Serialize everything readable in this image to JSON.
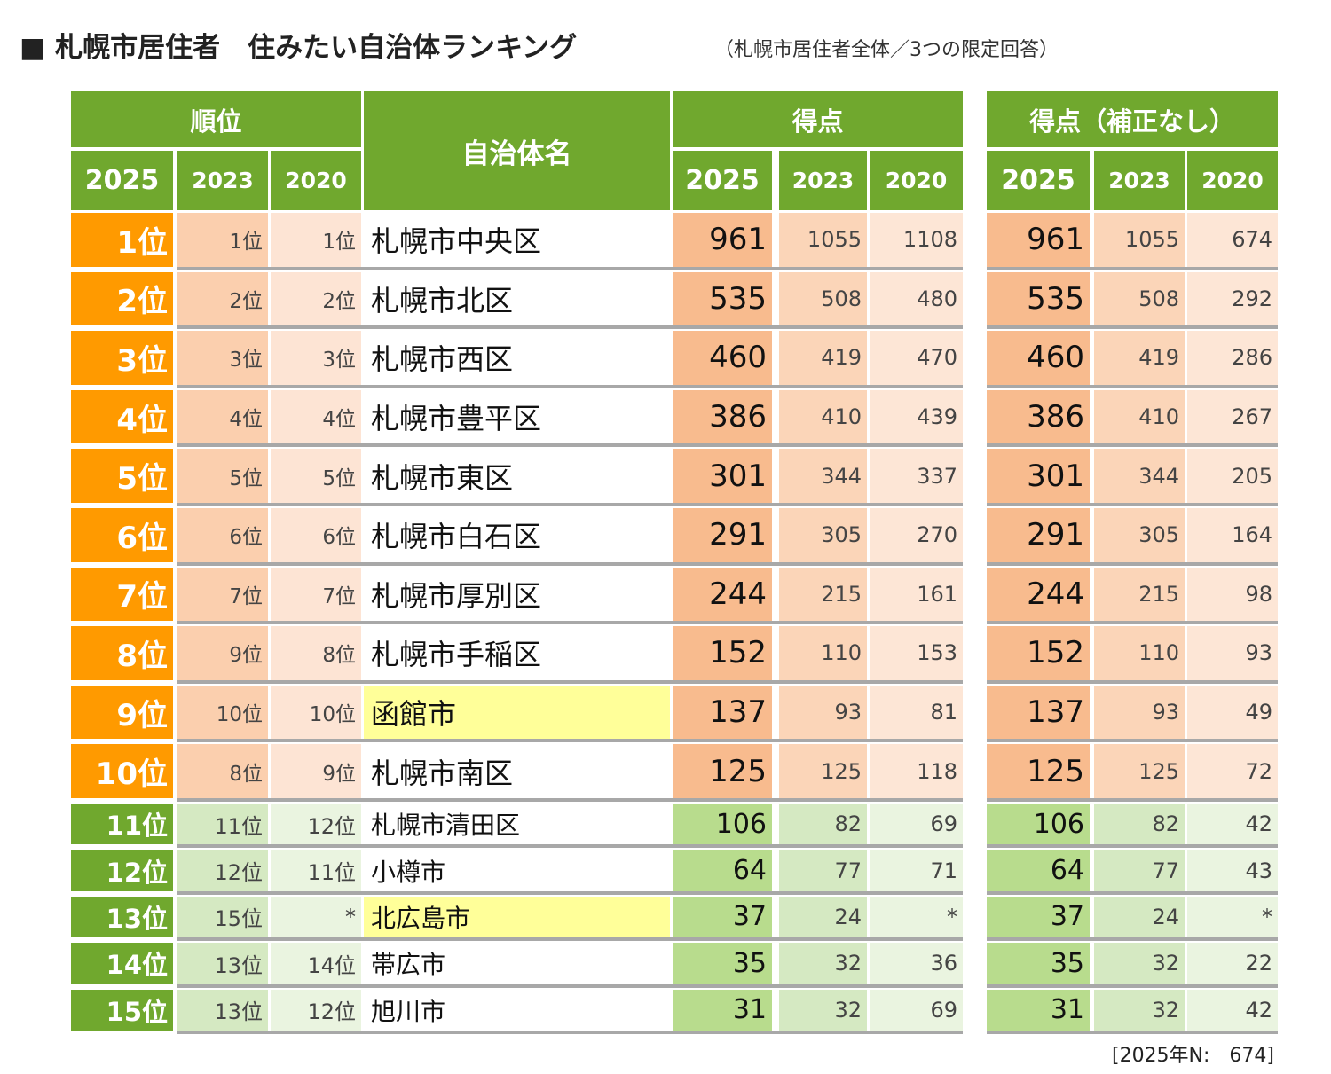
{
  "title": "■ 札幌市居住者　住みたい自治体ランキング",
  "subtitle": "（札幌市居住者全体／3つの限定回答）",
  "note": "[2025年N:　674]",
  "headers": {
    "rank": "順位",
    "name": "自治体名",
    "score": "得点",
    "score_raw": "得点（補正なし）",
    "years": [
      "2025",
      "2023",
      "2020"
    ]
  },
  "colors": {
    "header_green": "#70a82e",
    "top10_rank": "#ff9a00",
    "rank_green": "#70a82e",
    "highlight": "#ffff99"
  },
  "rows": [
    {
      "rank": "1位",
      "r2023": "1位",
      "r2020": "1位",
      "name": "札幌市中央区",
      "s2025": "961",
      "s2023": "1055",
      "s2020": "1108",
      "u2025": "961",
      "u2023": "1055",
      "u2020": "674"
    },
    {
      "rank": "2位",
      "r2023": "2位",
      "r2020": "2位",
      "name": "札幌市北区",
      "s2025": "535",
      "s2023": "508",
      "s2020": "480",
      "u2025": "535",
      "u2023": "508",
      "u2020": "292"
    },
    {
      "rank": "3位",
      "r2023": "3位",
      "r2020": "3位",
      "name": "札幌市西区",
      "s2025": "460",
      "s2023": "419",
      "s2020": "470",
      "u2025": "460",
      "u2023": "419",
      "u2020": "286"
    },
    {
      "rank": "4位",
      "r2023": "4位",
      "r2020": "4位",
      "name": "札幌市豊平区",
      "s2025": "386",
      "s2023": "410",
      "s2020": "439",
      "u2025": "386",
      "u2023": "410",
      "u2020": "267"
    },
    {
      "rank": "5位",
      "r2023": "5位",
      "r2020": "5位",
      "name": "札幌市東区",
      "s2025": "301",
      "s2023": "344",
      "s2020": "337",
      "u2025": "301",
      "u2023": "344",
      "u2020": "205"
    },
    {
      "rank": "6位",
      "r2023": "6位",
      "r2020": "6位",
      "name": "札幌市白石区",
      "s2025": "291",
      "s2023": "305",
      "s2020": "270",
      "u2025": "291",
      "u2023": "305",
      "u2020": "164"
    },
    {
      "rank": "7位",
      "r2023": "7位",
      "r2020": "7位",
      "name": "札幌市厚別区",
      "s2025": "244",
      "s2023": "215",
      "s2020": "161",
      "u2025": "244",
      "u2023": "215",
      "u2020": "98"
    },
    {
      "rank": "8位",
      "r2023": "9位",
      "r2020": "8位",
      "name": "札幌市手稲区",
      "s2025": "152",
      "s2023": "110",
      "s2020": "153",
      "u2025": "152",
      "u2023": "110",
      "u2020": "93"
    },
    {
      "rank": "9位",
      "r2023": "10位",
      "r2020": "10位",
      "name": "函館市",
      "highlight": true,
      "s2025": "137",
      "s2023": "93",
      "s2020": "81",
      "u2025": "137",
      "u2023": "93",
      "u2020": "49"
    },
    {
      "rank": "10位",
      "r2023": "8位",
      "r2020": "9位",
      "name": "札幌市南区",
      "s2025": "125",
      "s2023": "125",
      "s2020": "118",
      "u2025": "125",
      "u2023": "125",
      "u2020": "72"
    },
    {
      "rank": "11位",
      "r2023": "11位",
      "r2020": "12位",
      "name": "札幌市清田区",
      "s2025": "106",
      "s2023": "82",
      "s2020": "69",
      "u2025": "106",
      "u2023": "82",
      "u2020": "42"
    },
    {
      "rank": "12位",
      "r2023": "12位",
      "r2020": "11位",
      "name": "小樽市",
      "s2025": "64",
      "s2023": "77",
      "s2020": "71",
      "u2025": "64",
      "u2023": "77",
      "u2020": "43"
    },
    {
      "rank": "13位",
      "r2023": "15位",
      "r2020": "*",
      "name": "北広島市",
      "highlight": true,
      "s2025": "37",
      "s2023": "24",
      "s2020": "*",
      "u2025": "37",
      "u2023": "24",
      "u2020": "*"
    },
    {
      "rank": "14位",
      "r2023": "13位",
      "r2020": "14位",
      "name": "帯広市",
      "s2025": "35",
      "s2023": "32",
      "s2020": "36",
      "u2025": "35",
      "u2023": "32",
      "u2020": "22"
    },
    {
      "rank": "15位",
      "r2023": "13位",
      "r2020": "12位",
      "name": "旭川市",
      "s2025": "31",
      "s2023": "32",
      "s2020": "69",
      "u2025": "31",
      "u2023": "32",
      "u2020": "42"
    }
  ]
}
